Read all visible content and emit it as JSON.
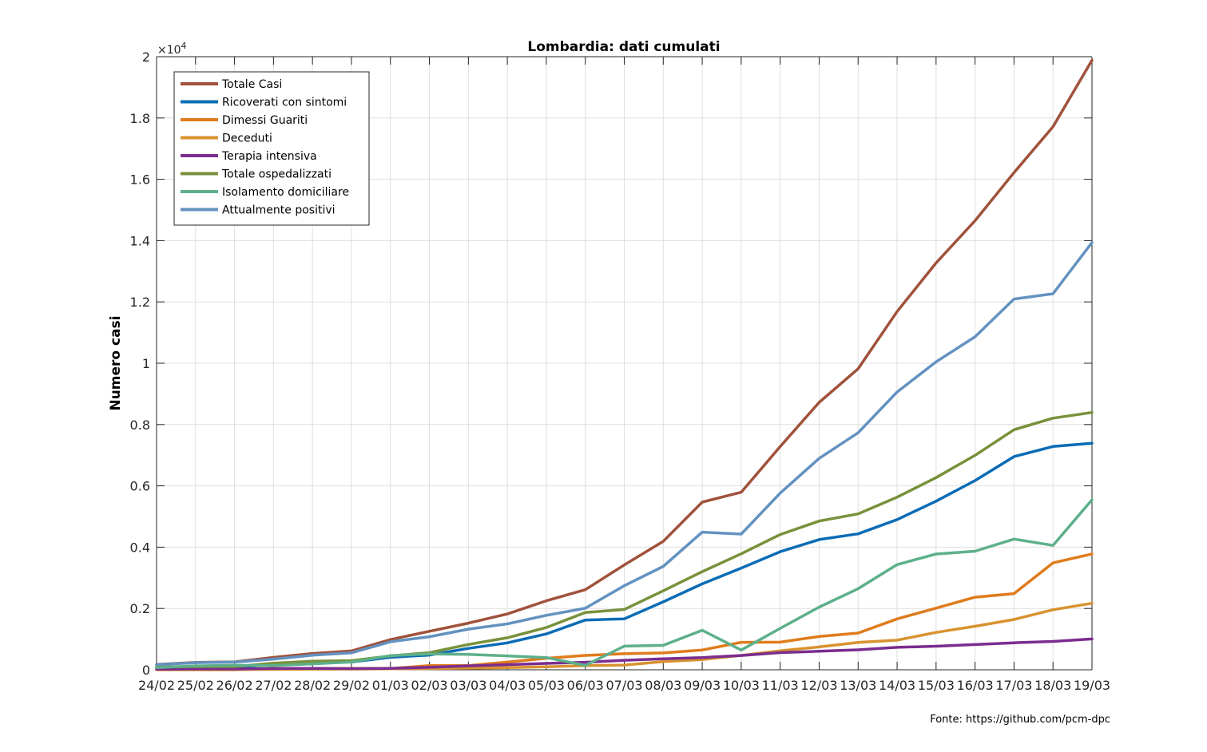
{
  "chart_data": {
    "type": "line",
    "title": "Lombardia: dati cumulati",
    "ylabel": "Numero casi",
    "y_exponent_label": "×10",
    "y_exponent_power": "4",
    "ylim": [
      0,
      20000
    ],
    "yticks": [
      0,
      2000,
      4000,
      6000,
      8000,
      10000,
      12000,
      14000,
      16000,
      18000,
      20000
    ],
    "ytick_labels": [
      "0",
      "0.2",
      "0.4",
      "0.6",
      "0.8",
      "1",
      "1.2",
      "1.4",
      "1.6",
      "1.8",
      "2"
    ],
    "grid": true,
    "legend_position": "top-left",
    "categories": [
      "24/02",
      "25/02",
      "26/02",
      "27/02",
      "28/02",
      "29/02",
      "01/03",
      "02/03",
      "03/03",
      "04/03",
      "05/03",
      "06/03",
      "07/03",
      "08/03",
      "09/03",
      "10/03",
      "11/03",
      "12/03",
      "13/03",
      "14/03",
      "15/03",
      "16/03",
      "17/03",
      "18/03",
      "19/03"
    ],
    "series": [
      {
        "name": "Totale Casi",
        "color": "#a0523b",
        "values": [
          172,
          240,
          258,
          403,
          531,
          615,
          984,
          1254,
          1520,
          1820,
          2251,
          2612,
          3420,
          4189,
          5469,
          5791,
          7280,
          8725,
          9820,
          11685,
          13272,
          14649,
          16220,
          17713,
          19884
        ]
      },
      {
        "name": "Ricoverati con sintomi",
        "color": "#0b6cb5",
        "values": [
          76,
          79,
          79,
          172,
          235,
          256,
          406,
          478,
          698,
          877,
          1169,
          1622,
          1661,
          2217,
          2802,
          3319,
          3852,
          4247,
          4435,
          4898,
          5500,
          6171,
          6953,
          7285,
          7387
        ]
      },
      {
        "name": "Dimessi Guariti",
        "color": "#e07b1c",
        "values": [
          0,
          0,
          0,
          40,
          40,
          40,
          40,
          139,
          139,
          250,
          376,
          469,
          524,
          550,
          646,
          896,
          900,
          1085,
          1198,
          1660,
          2011,
          2368,
          2485,
          3488,
          3778
        ]
      },
      {
        "name": "Deceduti",
        "color": "#d99230",
        "values": [
          6,
          9,
          9,
          14,
          17,
          23,
          31,
          38,
          55,
          73,
          98,
          135,
          154,
          267,
          333,
          468,
          617,
          744,
          890,
          966,
          1218,
          1420,
          1640,
          1959,
          2168
        ]
      },
      {
        "name": "Terapia intensiva",
        "color": "#7a2d8f",
        "values": [
          19,
          25,
          25,
          41,
          47,
          40,
          47,
          80,
          127,
          167,
          209,
          244,
          309,
          359,
          399,
          466,
          560,
          605,
          650,
          732,
          767,
          823,
          879,
          924,
          1006
        ]
      },
      {
        "name": "Totale ospedalizzati",
        "color": "#78913b",
        "values": [
          95,
          104,
          104,
          213,
          282,
          296,
          453,
          558,
          825,
          1044,
          1378,
          1866,
          1970,
          2576,
          3201,
          3785,
          4412,
          4852,
          5085,
          5630,
          6267,
          6994,
          7832,
          8209,
          8393
        ]
      },
      {
        "name": "Isolamento domiciliare",
        "color": "#5db08a",
        "values": [
          71,
          127,
          145,
          136,
          192,
          256,
          460,
          519,
          501,
          453,
          399,
          142,
          772,
          796,
          1289,
          642,
          1351,
          2044,
          2647,
          3429,
          3776,
          3867,
          4263,
          4057,
          5545
        ]
      },
      {
        "name": "Attualmente positivi",
        "color": "#6392c0",
        "values": [
          166,
          231,
          249,
          349,
          474,
          552,
          913,
          1077,
          1326,
          1497,
          1777,
          2008,
          2742,
          3372,
          4490,
          4427,
          5763,
          6896,
          7732,
          9059,
          10043,
          10861,
          12095,
          12266,
          13938
        ]
      }
    ]
  },
  "source_label": "Fonte: https://github.com/pcm-dpc"
}
